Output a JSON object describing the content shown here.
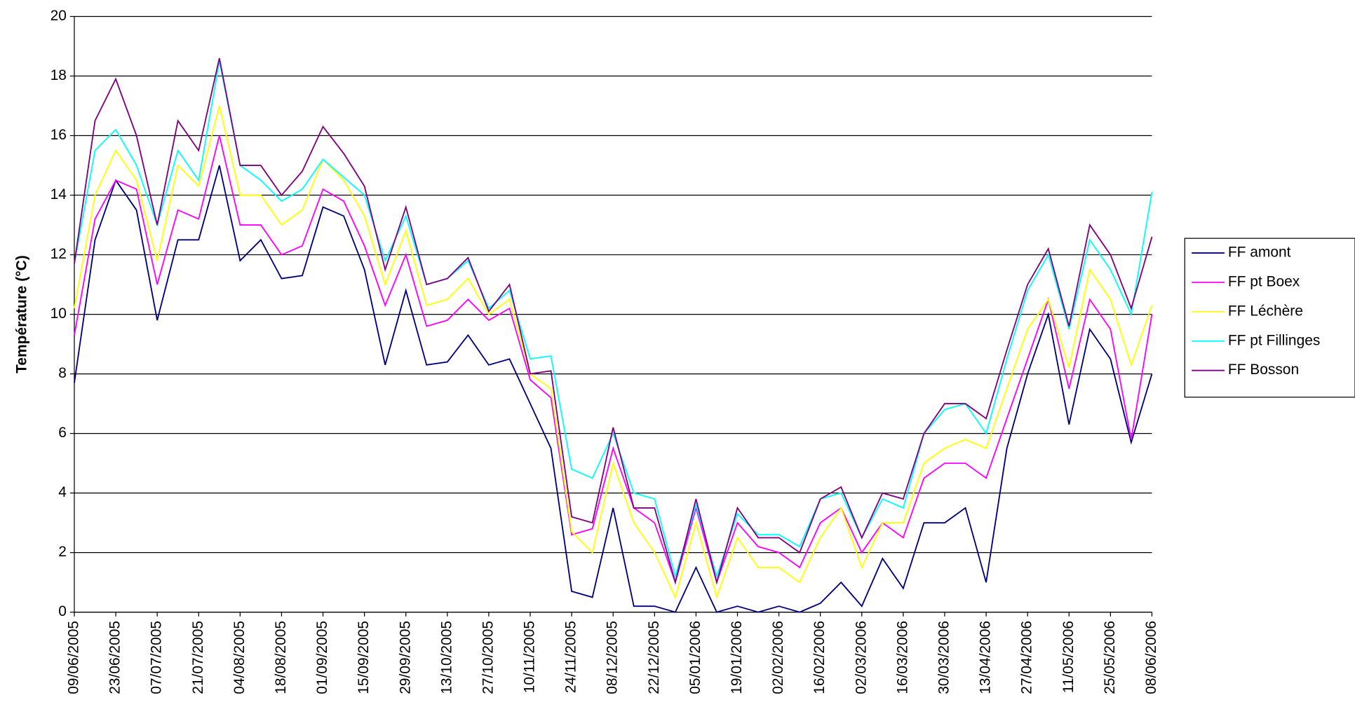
{
  "chart_data": {
    "type": "line",
    "y_label": "Température (°C)",
    "ylim": [
      0,
      20
    ],
    "yticks": [
      0,
      2,
      4,
      6,
      8,
      10,
      12,
      14,
      16,
      18,
      20
    ],
    "grid": true,
    "legend": "right",
    "xlim": [
      "09/06/2005",
      "08/06/2006"
    ],
    "xticks": [
      "09/06/2005",
      "23/06/2005",
      "07/07/2005",
      "21/07/2005",
      "04/08/2005",
      "18/08/2005",
      "01/09/2005",
      "15/09/2005",
      "29/09/2005",
      "13/10/2005",
      "27/10/2005",
      "10/11/2005",
      "24/11/2005",
      "08/12/2005",
      "22/12/2005",
      "05/01/2006",
      "19/01/2006",
      "02/02/2006",
      "16/02/2006",
      "02/03/2006",
      "16/03/2006",
      "30/03/2006",
      "13/04/2006",
      "27/04/2006",
      "11/05/2006",
      "25/05/2006",
      "08/06/2006"
    ],
    "x": [
      "09/06/2005",
      "16/06/2005",
      "23/06/2005",
      "30/06/2005",
      "07/07/2005",
      "14/07/2005",
      "21/07/2005",
      "28/07/2005",
      "04/08/2005",
      "11/08/2005",
      "18/08/2005",
      "25/08/2005",
      "01/09/2005",
      "08/09/2005",
      "15/09/2005",
      "22/09/2005",
      "29/09/2005",
      "06/10/2005",
      "13/10/2005",
      "20/10/2005",
      "27/10/2005",
      "03/11/2005",
      "10/11/2005",
      "17/11/2005",
      "24/11/2005",
      "01/12/2005",
      "08/12/2005",
      "15/12/2005",
      "22/12/2005",
      "29/12/2005",
      "05/01/2006",
      "12/01/2006",
      "19/01/2006",
      "26/01/2006",
      "02/02/2006",
      "09/02/2006",
      "16/02/2006",
      "23/02/2006",
      "02/03/2006",
      "09/03/2006",
      "16/03/2006",
      "23/03/2006",
      "30/03/2006",
      "06/04/2006",
      "13/04/2006",
      "20/04/2006",
      "27/04/2006",
      "04/05/2006",
      "11/05/2006",
      "18/05/2006",
      "25/05/2006",
      "01/06/2006",
      "08/06/2006"
    ],
    "series": [
      {
        "name": "FF amont",
        "color": "#000080",
        "values": [
          7.7,
          12.5,
          14.5,
          13.5,
          9.8,
          12.5,
          12.5,
          15,
          11.8,
          12.5,
          11.2,
          11.3,
          13.6,
          13.3,
          11.5,
          8.3,
          10.8,
          8.3,
          8.4,
          9.3,
          8.3,
          8.5,
          7,
          5.5,
          0.7,
          0.5,
          3.5,
          0.2,
          0.2,
          0,
          1.5,
          0,
          0.2,
          0,
          0.2,
          0,
          0.3,
          1,
          0.2,
          1.8,
          0.8,
          3,
          3,
          3.5,
          1,
          5.5,
          8,
          10,
          6.3,
          9.5,
          8.5,
          5.7,
          8
        ]
      },
      {
        "name": "FF pt Boex",
        "color": "#ff00ff",
        "values": [
          9.3,
          13.2,
          14.5,
          14.2,
          11,
          13.5,
          13.2,
          16,
          13,
          13,
          12,
          12.3,
          14.2,
          13.8,
          12.3,
          10.3,
          12,
          9.6,
          9.8,
          10.5,
          9.8,
          10.2,
          7.8,
          7.2,
          2.6,
          2.8,
          5.5,
          3.5,
          3,
          1,
          3.5,
          1,
          3,
          2.2,
          2,
          1.5,
          3,
          3.5,
          2,
          3,
          2.5,
          4.5,
          5,
          5,
          4.5,
          6.5,
          8.5,
          10.5,
          7.5,
          10.5,
          9.5,
          5.8,
          10
        ]
      },
      {
        "name": "FF Léchère",
        "color": "#ffff00",
        "values": [
          10.2,
          14,
          15.5,
          14.5,
          11.8,
          15,
          14.3,
          17,
          14,
          14,
          13,
          13.5,
          15.2,
          14.5,
          13.3,
          11,
          12.8,
          10.3,
          10.5,
          11.2,
          10,
          10.5,
          8,
          7.5,
          2.7,
          2,
          5,
          3,
          2,
          0.5,
          3,
          0.5,
          2.5,
          1.5,
          1.5,
          1,
          2.5,
          3.5,
          1.5,
          3,
          3,
          5,
          5.5,
          5.8,
          5.5,
          7.5,
          9.5,
          10.5,
          8.2,
          11.5,
          10.5,
          8.3,
          10.3
        ]
      },
      {
        "name": "FF pt Fillinges",
        "color": "#00ffff",
        "values": [
          11.7,
          15.5,
          16.2,
          15,
          13,
          15.5,
          14.5,
          18.5,
          15,
          14.5,
          13.8,
          14.2,
          15.2,
          14.6,
          14,
          11.8,
          13.3,
          11,
          11.2,
          11.8,
          10.2,
          10.8,
          8.5,
          8.6,
          4.8,
          4.5,
          6,
          4,
          3.8,
          1.2,
          3.6,
          1.2,
          3.3,
          2.6,
          2.6,
          2.2,
          3.8,
          4,
          2.5,
          3.8,
          3.5,
          6,
          6.8,
          7,
          6,
          8.5,
          10.8,
          12,
          9.5,
          12.5,
          11.5,
          10,
          14.1
        ]
      },
      {
        "name": "FF Bosson",
        "color": "#800080",
        "values": [
          11.7,
          16.5,
          17.9,
          16,
          13,
          16.5,
          15.5,
          18.6,
          15,
          15,
          14,
          14.8,
          16.3,
          15.4,
          14.3,
          11.5,
          13.6,
          11,
          11.2,
          11.9,
          10.1,
          11,
          8,
          8.1,
          3.2,
          3,
          6.2,
          3.5,
          3.5,
          1,
          3.8,
          1,
          3.5,
          2.5,
          2.5,
          2,
          3.8,
          4.2,
          2.5,
          4,
          3.8,
          6,
          7,
          7,
          6.5,
          8.8,
          11,
          12.2,
          9.6,
          13,
          12,
          10.2,
          12.6
        ]
      }
    ]
  }
}
